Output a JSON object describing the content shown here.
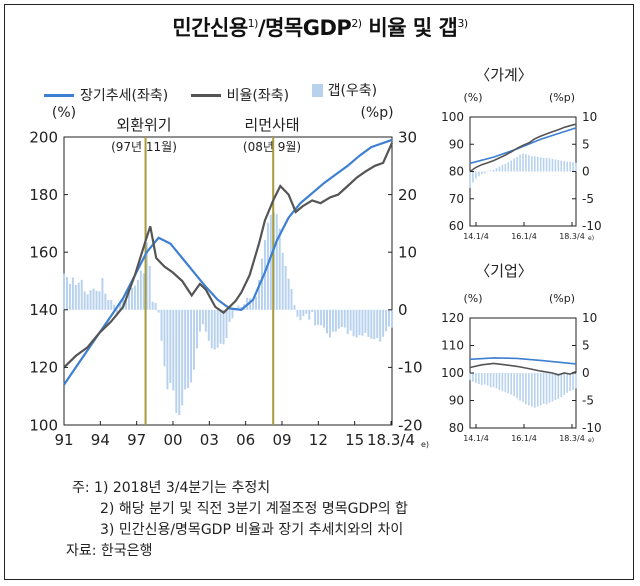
{
  "title": "민간신용",
  "title_sup1": "1)",
  "title_mid": "/명목GDP",
  "title_sup2": "2)",
  "title_tail": " 비율 및 갭",
  "title_sup3": "3)",
  "legend": {
    "trend": "장기추세(좌축)",
    "ratio": "비율(좌축)",
    "gap": "갭(우축)"
  },
  "colors": {
    "trend": "#3d7fd1",
    "ratio": "#555555",
    "gap": "#b8d2ee",
    "event_line": "#a59a3c"
  },
  "main": {
    "left_unit": "(%)",
    "right_unit": "(%p)",
    "event1_line1": "외환위기",
    "event1_line2": "(97년 11월)",
    "event2_line1": "리먼사태",
    "event2_line2": "(08년 9월)",
    "last_tick_sup": "e)"
  },
  "chart_data": [
    {
      "type": "line",
      "name": "main",
      "x_ticks": [
        "91",
        "94",
        "97",
        "00",
        "03",
        "06",
        "09",
        "12",
        "15",
        "18.3/4"
      ],
      "y_left_ticks": [
        100,
        120,
        140,
        160,
        180,
        200
      ],
      "y_right_ticks": [
        -20,
        -10,
        0,
        10,
        20,
        30
      ],
      "ylim_left": [
        100,
        200
      ],
      "ylim_right": [
        -20,
        30
      ],
      "xlim": [
        1991.0,
        2018.75
      ],
      "events": [
        1997.9,
        2008.7
      ],
      "trend": [
        [
          1991,
          114
        ],
        [
          1992,
          120
        ],
        [
          1993,
          126
        ],
        [
          1994,
          132
        ],
        [
          1995,
          138
        ],
        [
          1996,
          144
        ],
        [
          1997,
          152
        ],
        [
          1998,
          160
        ],
        [
          1999,
          165
        ],
        [
          2000,
          163
        ],
        [
          2001,
          158
        ],
        [
          2002,
          153
        ],
        [
          2003,
          148
        ],
        [
          2004,
          143.5
        ],
        [
          2005,
          140.5
        ],
        [
          2006,
          140
        ],
        [
          2007,
          143.5
        ],
        [
          2008,
          153
        ],
        [
          2009,
          164
        ],
        [
          2010,
          172
        ],
        [
          2011,
          177
        ],
        [
          2012,
          180.5
        ],
        [
          2013,
          184
        ],
        [
          2014,
          187
        ],
        [
          2015,
          190
        ],
        [
          2016,
          193.5
        ],
        [
          2017,
          196.5
        ],
        [
          2018.75,
          199
        ]
      ],
      "ratio": [
        [
          1991,
          120
        ],
        [
          1992,
          124
        ],
        [
          1993,
          127
        ],
        [
          1994,
          132
        ],
        [
          1995,
          136
        ],
        [
          1996,
          141
        ],
        [
          1997,
          152
        ],
        [
          1997.9,
          164
        ],
        [
          1998.3,
          169
        ],
        [
          1998.8,
          158
        ],
        [
          1999.5,
          155
        ],
        [
          2000.2,
          153
        ],
        [
          2001,
          150
        ],
        [
          2001.8,
          145
        ],
        [
          2002.5,
          149
        ],
        [
          2003,
          147
        ],
        [
          2003.8,
          141
        ],
        [
          2004.5,
          139
        ],
        [
          2005,
          141
        ],
        [
          2005.5,
          143
        ],
        [
          2006,
          146
        ],
        [
          2006.7,
          152
        ],
        [
          2007.5,
          163
        ],
        [
          2008,
          171
        ],
        [
          2008.7,
          178
        ],
        [
          2009.3,
          183
        ],
        [
          2010,
          180
        ],
        [
          2010.6,
          174
        ],
        [
          2011.2,
          176
        ],
        [
          2012,
          178
        ],
        [
          2012.7,
          177
        ],
        [
          2013.5,
          179
        ],
        [
          2014.2,
          180
        ],
        [
          2015,
          183
        ],
        [
          2015.8,
          186
        ],
        [
          2016.5,
          188
        ],
        [
          2017.3,
          190
        ],
        [
          2018,
          191
        ],
        [
          2018.75,
          198
        ]
      ],
      "gap": [
        [
          1991,
          6.3
        ],
        [
          1991.25,
          5.7
        ],
        [
          1991.5,
          4.5
        ],
        [
          1991.75,
          5.6
        ],
        [
          1992,
          4.3
        ],
        [
          1992.25,
          4.7
        ],
        [
          1992.5,
          5.2
        ],
        [
          1992.75,
          3.2
        ],
        [
          1993,
          2.7
        ],
        [
          1993.25,
          3.4
        ],
        [
          1993.5,
          3.7
        ],
        [
          1993.75,
          3.3
        ],
        [
          1994,
          3.2
        ],
        [
          1994.25,
          5.5
        ],
        [
          1994.5,
          2.8
        ],
        [
          1994.75,
          1.7
        ],
        [
          1995,
          1.7
        ],
        [
          1995.25,
          0.9
        ],
        [
          1995.5,
          -1
        ],
        [
          1995.75,
          1.3
        ],
        [
          1996,
          1.8
        ],
        [
          1996.25,
          2
        ],
        [
          1996.5,
          3.8
        ],
        [
          1996.75,
          3.8
        ],
        [
          1997,
          4.2
        ],
        [
          1997.25,
          5.2
        ],
        [
          1997.5,
          6.8
        ],
        [
          1997.75,
          6.3
        ],
        [
          1998,
          11.7
        ],
        [
          1998.25,
          7.6
        ],
        [
          1998.5,
          1.4
        ],
        [
          1998.75,
          1.2
        ],
        [
          1999,
          -0.5
        ],
        [
          1999.25,
          -5.4
        ],
        [
          1999.5,
          -9.8
        ],
        [
          1999.75,
          -13.8
        ],
        [
          2000,
          -12.7
        ],
        [
          2000.25,
          -14
        ],
        [
          2000.5,
          -17.9
        ],
        [
          2000.75,
          -18.3
        ],
        [
          2001,
          -16.6
        ],
        [
          2001.25,
          -13.8
        ],
        [
          2001.5,
          -13.6
        ],
        [
          2001.75,
          -12.6
        ],
        [
          2002,
          -10.4
        ],
        [
          2002.25,
          -6.7
        ],
        [
          2002.5,
          -3.8
        ],
        [
          2002.75,
          -2.5
        ],
        [
          2003,
          -3.8
        ],
        [
          2003.25,
          -5.4
        ],
        [
          2003.5,
          -6.7
        ],
        [
          2003.75,
          -6.9
        ],
        [
          2004,
          -6.6
        ],
        [
          2004.25,
          -5.9
        ],
        [
          2004.5,
          -6
        ],
        [
          2004.75,
          -4.9
        ],
        [
          2005,
          -2.1
        ],
        [
          2005.25,
          -1.5
        ],
        [
          2005.5,
          0.3
        ],
        [
          2005.75,
          0.7
        ],
        [
          2006,
          0.5
        ],
        [
          2006.25,
          1
        ],
        [
          2006.5,
          2.1
        ],
        [
          2006.75,
          2
        ],
        [
          2007,
          1.6
        ],
        [
          2007.25,
          2.3
        ],
        [
          2007.5,
          5.2
        ],
        [
          2007.75,
          8.9
        ],
        [
          2008,
          12.1
        ],
        [
          2008.25,
          15.1
        ],
        [
          2008.5,
          16.5
        ],
        [
          2008.75,
          17
        ],
        [
          2009,
          16.6
        ],
        [
          2009.25,
          14.1
        ],
        [
          2009.5,
          9.9
        ],
        [
          2009.75,
          7.6
        ],
        [
          2010,
          5.4
        ],
        [
          2010.25,
          3.6
        ],
        [
          2010.5,
          0.8
        ],
        [
          2010.75,
          -1.2
        ],
        [
          2011,
          -1.8
        ],
        [
          2011.25,
          -1.1
        ],
        [
          2011.5,
          -0.7
        ],
        [
          2011.75,
          -1.7
        ],
        [
          2012,
          -0.4
        ],
        [
          2012.25,
          -2.7
        ],
        [
          2012.5,
          -2.6
        ],
        [
          2012.75,
          -2.7
        ],
        [
          2013,
          -3.1
        ],
        [
          2013.25,
          -4.1
        ],
        [
          2013.5,
          -4.8
        ],
        [
          2013.75,
          -3.8
        ],
        [
          2014,
          -3.8
        ],
        [
          2014.25,
          -3.3
        ],
        [
          2014.5,
          -3
        ],
        [
          2014.75,
          -3.1
        ],
        [
          2015,
          -4.2
        ],
        [
          2015.25,
          -3.6
        ],
        [
          2015.5,
          -4.6
        ],
        [
          2015.75,
          -4.8
        ],
        [
          2016,
          -4.4
        ],
        [
          2016.25,
          -4.5
        ],
        [
          2016.5,
          -4
        ],
        [
          2016.75,
          -4.7
        ],
        [
          2017,
          -5
        ],
        [
          2017.25,
          -5.1
        ],
        [
          2017.5,
          -4.9
        ],
        [
          2017.75,
          -5.5
        ],
        [
          2018,
          -4.7
        ],
        [
          2018.25,
          -3.7
        ],
        [
          2018.5,
          -2.9
        ],
        [
          2018.75,
          -3.1
        ]
      ]
    },
    {
      "type": "line",
      "name": "household",
      "title": "〈가계〉",
      "left_unit": "(%)",
      "right_unit": "(%p)",
      "x_ticks": [
        "14.1/4",
        "16.1/4",
        "18.3/4"
      ],
      "last_tick_sup": "e)",
      "y_left_ticks": [
        60,
        70,
        80,
        90,
        100
      ],
      "y_right_ticks": [
        -10,
        -5,
        0,
        5,
        10
      ],
      "ylim_left": [
        60,
        100
      ],
      "ylim_right": [
        -10,
        10
      ],
      "xlim": [
        2014.0,
        2018.5
      ],
      "trend": [
        [
          2014,
          83
        ],
        [
          2015,
          85.3
        ],
        [
          2016,
          88.3
        ],
        [
          2017,
          91.8
        ],
        [
          2018.5,
          96
        ]
      ],
      "ratio": [
        [
          2014,
          80
        ],
        [
          2014.25,
          81.5
        ],
        [
          2014.5,
          82.5
        ],
        [
          2014.75,
          83.2
        ],
        [
          2015,
          84
        ],
        [
          2015.25,
          85
        ],
        [
          2015.5,
          86
        ],
        [
          2015.75,
          87.2
        ],
        [
          2016,
          88.5
        ],
        [
          2016.25,
          89.6
        ],
        [
          2016.5,
          90.5
        ],
        [
          2016.75,
          92
        ],
        [
          2017,
          93
        ],
        [
          2017.25,
          93.8
        ],
        [
          2017.5,
          94.6
        ],
        [
          2017.75,
          95.3
        ],
        [
          2018,
          96.2
        ],
        [
          2018.25,
          96.8
        ],
        [
          2018.5,
          97.4
        ]
      ],
      "gap": [
        [
          2014,
          -3
        ],
        [
          2014.125,
          -2
        ],
        [
          2014.25,
          -1.3
        ],
        [
          2014.375,
          -0.9
        ],
        [
          2014.5,
          -0.5
        ],
        [
          2014.625,
          -0.3
        ],
        [
          2014.75,
          -0.1
        ],
        [
          2014.875,
          0.2
        ],
        [
          2015,
          0.3
        ],
        [
          2015.125,
          0.6
        ],
        [
          2015.25,
          0.9
        ],
        [
          2015.375,
          1.2
        ],
        [
          2015.5,
          1.4
        ],
        [
          2015.625,
          1.7
        ],
        [
          2015.75,
          2
        ],
        [
          2015.875,
          2.4
        ],
        [
          2016,
          2.7
        ],
        [
          2016.125,
          3.1
        ],
        [
          2016.25,
          3.3
        ],
        [
          2016.375,
          3.2
        ],
        [
          2016.5,
          3
        ],
        [
          2016.625,
          2.8
        ],
        [
          2016.75,
          2.8
        ],
        [
          2016.875,
          2.7
        ],
        [
          2017,
          2.6
        ],
        [
          2017.125,
          2.5
        ],
        [
          2017.25,
          2.5
        ],
        [
          2017.375,
          2.4
        ],
        [
          2017.5,
          2.3
        ],
        [
          2017.625,
          2.2
        ],
        [
          2017.75,
          2.1
        ],
        [
          2017.875,
          2
        ],
        [
          2018,
          1.9
        ],
        [
          2018.125,
          1.8
        ],
        [
          2018.25,
          1.8
        ],
        [
          2018.375,
          1.7
        ],
        [
          2018.5,
          1.6
        ]
      ]
    },
    {
      "type": "line",
      "name": "corporate",
      "title": "〈기업〉",
      "left_unit": "(%)",
      "right_unit": "(%p)",
      "x_ticks": [
        "14.1/4",
        "16.1/4",
        "18.3/4"
      ],
      "last_tick_sup": "e)",
      "y_left_ticks": [
        80,
        90,
        100,
        110,
        120
      ],
      "y_right_ticks": [
        -10,
        -5,
        0,
        5,
        10
      ],
      "ylim_left": [
        80,
        120
      ],
      "ylim_right": [
        -10,
        10
      ],
      "xlim": [
        2014.0,
        2018.5
      ],
      "trend": [
        [
          2014,
          105
        ],
        [
          2015,
          105.5
        ],
        [
          2016,
          105.3
        ],
        [
          2017,
          104.6
        ],
        [
          2018.5,
          103.3
        ]
      ],
      "ratio": [
        [
          2014,
          102
        ],
        [
          2014.5,
          103
        ],
        [
          2015,
          103.5
        ],
        [
          2015.5,
          103
        ],
        [
          2016,
          102.4
        ],
        [
          2016.5,
          101.6
        ],
        [
          2017,
          100.7
        ],
        [
          2017.5,
          100
        ],
        [
          2017.75,
          99.3
        ],
        [
          2018,
          100
        ],
        [
          2018.25,
          99.6
        ],
        [
          2018.5,
          100.5
        ]
      ],
      "gap": [
        [
          2014,
          -1.3
        ],
        [
          2014.125,
          -1.6
        ],
        [
          2014.25,
          -1.8
        ],
        [
          2014.375,
          -2
        ],
        [
          2014.5,
          -2.2
        ],
        [
          2014.625,
          -2.1
        ],
        [
          2014.75,
          -2.3
        ],
        [
          2014.875,
          -2.6
        ],
        [
          2015,
          -2.6
        ],
        [
          2015.125,
          -2.8
        ],
        [
          2015.25,
          -3.1
        ],
        [
          2015.375,
          -3.3
        ],
        [
          2015.5,
          -3.5
        ],
        [
          2015.625,
          -3.7
        ],
        [
          2015.75,
          -3.9
        ],
        [
          2015.875,
          -4.2
        ],
        [
          2016,
          -4.6
        ],
        [
          2016.125,
          -5
        ],
        [
          2016.25,
          -5.3
        ],
        [
          2016.375,
          -5.7
        ],
        [
          2016.5,
          -5.9
        ],
        [
          2016.625,
          -6.1
        ],
        [
          2016.75,
          -6.3
        ],
        [
          2016.875,
          -6.1
        ],
        [
          2017,
          -5.9
        ],
        [
          2017.125,
          -5.6
        ],
        [
          2017.25,
          -5.7
        ],
        [
          2017.375,
          -5.4
        ],
        [
          2017.5,
          -5.2
        ],
        [
          2017.625,
          -4.9
        ],
        [
          2017.75,
          -4.7
        ],
        [
          2017.875,
          -4.4
        ],
        [
          2018,
          -4
        ],
        [
          2018.125,
          -3.6
        ],
        [
          2018.25,
          -3.3
        ],
        [
          2018.375,
          -3.1
        ],
        [
          2018.5,
          -2.8
        ]
      ]
    }
  ],
  "notes": {
    "line1": "주: 1) 2018년 3/4분기는 추정치",
    "line2": "2) 해당 분기 및 직전 3분기 계절조정 명목GDP의 합",
    "line3": "3) 민간신용/명목GDP 비율과 장기 추세치와의 차이",
    "source": "자료: 한국은행"
  }
}
